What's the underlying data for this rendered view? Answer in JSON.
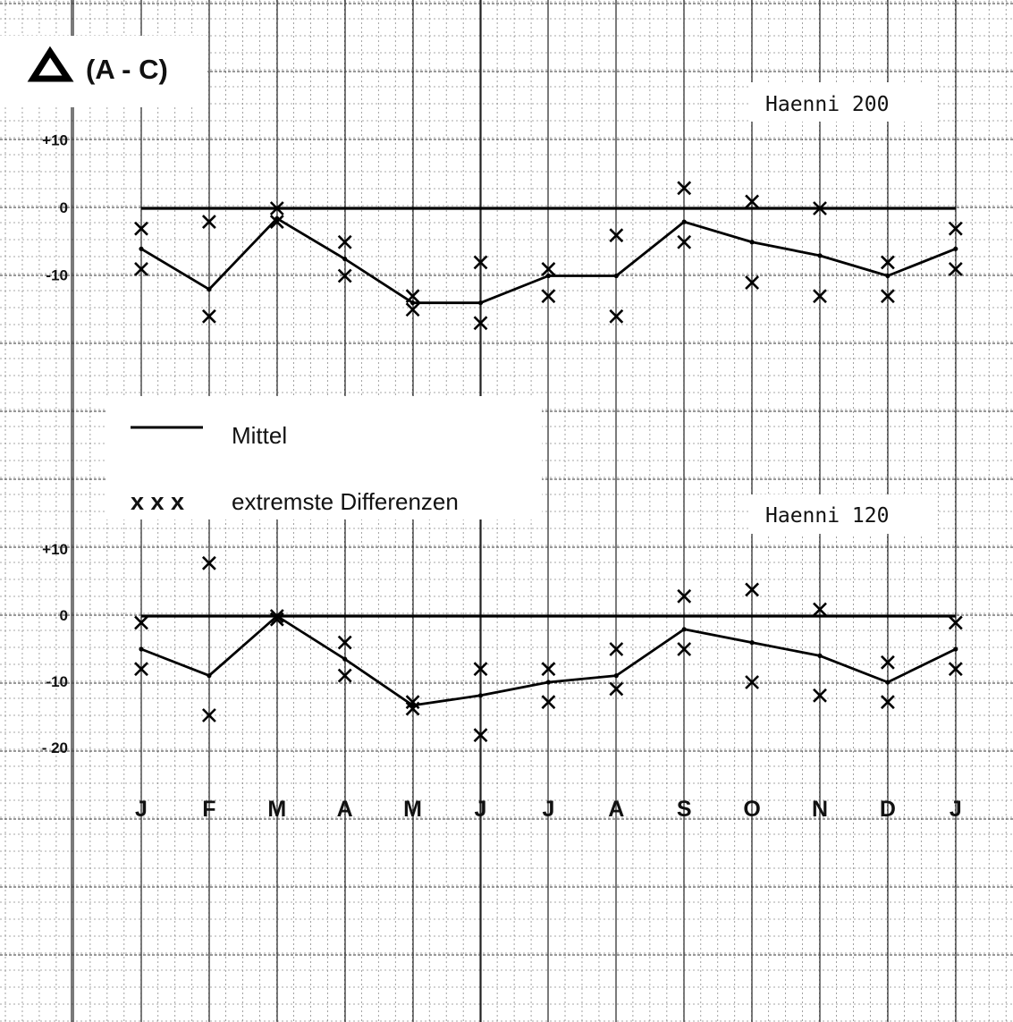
{
  "chart_data": {
    "type": "line",
    "title": "(A - C)",
    "legend": {
      "mean_label": "Mittel",
      "extremes_marker": "x x x",
      "extremes_label": "extremste Differenzen",
      "position": "middle-left"
    },
    "categories": [
      "J",
      "F",
      "M",
      "A",
      "M",
      "J",
      "J",
      "A",
      "S",
      "O",
      "N",
      "D",
      "J"
    ],
    "panels": [
      {
        "name": "Haenni 200",
        "yticks": [
          {
            "value": 10,
            "label": "+10"
          },
          {
            "value": 0,
            "label": "0"
          },
          {
            "value": -10,
            "label": "-10"
          }
        ],
        "ylim": [
          -20,
          10
        ],
        "zero_line": 0,
        "series": [
          {
            "values": [
              -6,
              -12,
              -1.5,
              -7.5,
              -14,
              -14,
              -10,
              -10,
              -2,
              -5,
              -7,
              -10,
              -6
            ]
          },
          {
            "values": [
              -3,
              -2,
              0,
              -5,
              -13,
              -8,
              -9,
              -4,
              3,
              1,
              0,
              -8,
              -3
            ]
          },
          {
            "values": [
              -9,
              -16,
              -2,
              -10,
              -15,
              -17,
              -13,
              -16,
              -5,
              -11,
              -13,
              -13,
              -9
            ]
          }
        ]
      },
      {
        "name": "Haenni 120",
        "yticks": [
          {
            "value": 10,
            "label": "+10"
          },
          {
            "value": 0,
            "label": "0"
          },
          {
            "value": -10,
            "label": "-10"
          },
          {
            "value": -20,
            "label": "- 20"
          }
        ],
        "ylim": [
          -20,
          10
        ],
        "zero_line": 0,
        "series": [
          {
            "values": [
              -5,
              -9,
              0,
              -6.5,
              -13.5,
              -12,
              -10,
              -9,
              -2,
              -4,
              -6,
              -10,
              -5
            ]
          },
          {
            "values": [
              -1,
              8,
              0,
              -4,
              -13,
              -8,
              -8,
              -5,
              3,
              4,
              1,
              -7,
              -1
            ]
          },
          {
            "values": [
              -8,
              -15,
              -0.5,
              -9,
              -14,
              -18,
              -13,
              -11,
              -5,
              -10,
              -12,
              -13,
              -8
            ]
          }
        ]
      }
    ],
    "grid": true
  }
}
